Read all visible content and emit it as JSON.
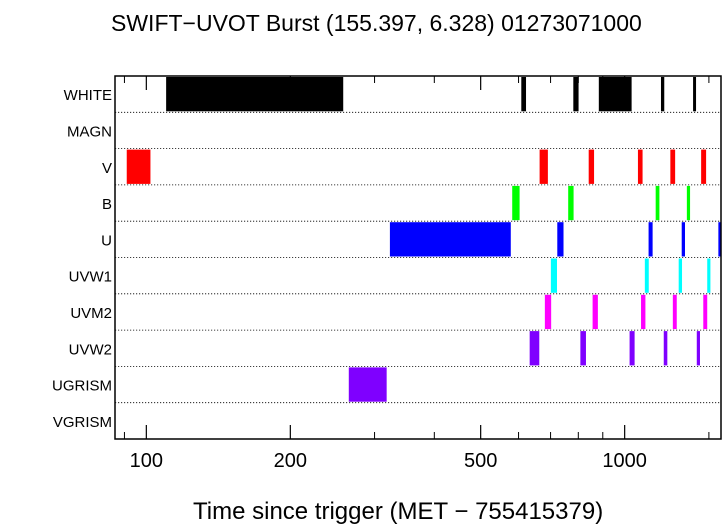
{
  "chart_data": {
    "type": "timeline",
    "title": "SWIFT−UVOT Burst (155.397, 6.328) 01273071000",
    "xlabel": "Time since trigger (MET − 755415379)",
    "xscale": "log",
    "xlim": [
      86,
      1590
    ],
    "grid": "dotted horizontal row separators",
    "filters": [
      "WHITE",
      "MAGN",
      "V",
      "B",
      "U",
      "UVW1",
      "UVM2",
      "UVW2",
      "UGRISM",
      "VGRISM"
    ],
    "x_tick_labels": [
      {
        "value": 100,
        "label": "100"
      },
      {
        "value": 200,
        "label": "200"
      },
      {
        "value": 500,
        "label": "500"
      },
      {
        "value": 1000,
        "label": "1000"
      }
    ],
    "minor_ticks": [
      90,
      300,
      400,
      600,
      700,
      800,
      900,
      1500
    ],
    "segments": [
      {
        "filter": "WHITE",
        "color": "#000000",
        "start": 110,
        "end": 258
      },
      {
        "filter": "WHITE",
        "color": "#000000",
        "start": 608,
        "end": 622
      },
      {
        "filter": "WHITE",
        "color": "#000000",
        "start": 781,
        "end": 801
      },
      {
        "filter": "WHITE",
        "color": "#000000",
        "start": 883,
        "end": 1034
      },
      {
        "filter": "WHITE",
        "color": "#000000",
        "start": 1191,
        "end": 1210
      },
      {
        "filter": "WHITE",
        "color": "#000000",
        "start": 1390,
        "end": 1410
      },
      {
        "filter": "V",
        "color": "#ff0000",
        "start": 91,
        "end": 102
      },
      {
        "filter": "V",
        "color": "#ff0000",
        "start": 664,
        "end": 691
      },
      {
        "filter": "V",
        "color": "#ff0000",
        "start": 841,
        "end": 863
      },
      {
        "filter": "V",
        "color": "#ff0000",
        "start": 1066,
        "end": 1090
      },
      {
        "filter": "V",
        "color": "#ff0000",
        "start": 1246,
        "end": 1275
      },
      {
        "filter": "V",
        "color": "#ff0000",
        "start": 1445,
        "end": 1480
      },
      {
        "filter": "B",
        "color": "#00ff00",
        "start": 582,
        "end": 603
      },
      {
        "filter": "B",
        "color": "#00ff00",
        "start": 762,
        "end": 782
      },
      {
        "filter": "B",
        "color": "#00ff00",
        "start": 1161,
        "end": 1182
      },
      {
        "filter": "B",
        "color": "#00ff00",
        "start": 1349,
        "end": 1370
      },
      {
        "filter": "U",
        "color": "#0000ff",
        "start": 323,
        "end": 578
      },
      {
        "filter": "U",
        "color": "#0000ff",
        "start": 723,
        "end": 745
      },
      {
        "filter": "U",
        "color": "#0000ff",
        "start": 1122,
        "end": 1144
      },
      {
        "filter": "U",
        "color": "#0000ff",
        "start": 1316,
        "end": 1337
      },
      {
        "filter": "U",
        "color": "#0000ff",
        "start": 1570,
        "end": 1590
      },
      {
        "filter": "UVW1",
        "color": "#00ffff",
        "start": 701,
        "end": 722
      },
      {
        "filter": "UVW1",
        "color": "#00ffff",
        "start": 1102,
        "end": 1123
      },
      {
        "filter": "UVW1",
        "color": "#00ffff",
        "start": 1297,
        "end": 1318
      },
      {
        "filter": "UVW1",
        "color": "#00ffff",
        "start": 1488,
        "end": 1511
      },
      {
        "filter": "UVM2",
        "color": "#ff00ff",
        "start": 681,
        "end": 702
      },
      {
        "filter": "UVM2",
        "color": "#ff00ff",
        "start": 857,
        "end": 879
      },
      {
        "filter": "UVM2",
        "color": "#ff00ff",
        "start": 1082,
        "end": 1105
      },
      {
        "filter": "UVM2",
        "color": "#ff00ff",
        "start": 1261,
        "end": 1285
      },
      {
        "filter": "UVM2",
        "color": "#ff00ff",
        "start": 1460,
        "end": 1488
      },
      {
        "filter": "UVW2",
        "color": "#7f00ff",
        "start": 633,
        "end": 663
      },
      {
        "filter": "UVW2",
        "color": "#7f00ff",
        "start": 808,
        "end": 830
      },
      {
        "filter": "UVW2",
        "color": "#7f00ff",
        "start": 1024,
        "end": 1049
      },
      {
        "filter": "UVW2",
        "color": "#7f00ff",
        "start": 1207,
        "end": 1228
      },
      {
        "filter": "UVW2",
        "color": "#7f00ff",
        "start": 1415,
        "end": 1437
      },
      {
        "filter": "UGRISM",
        "color": "#7f00ff",
        "start": 265,
        "end": 318
      }
    ]
  }
}
